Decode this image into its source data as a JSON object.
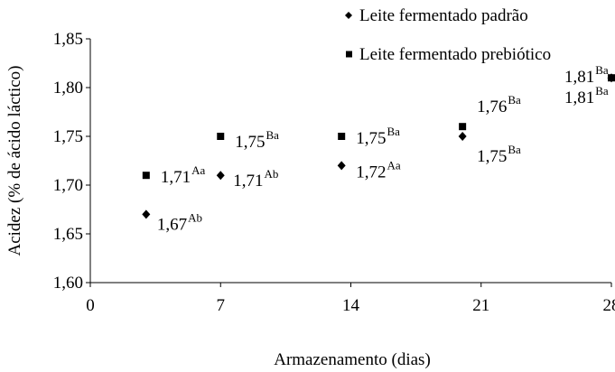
{
  "chart_data": {
    "type": "scatter",
    "x_label": "Armazenamento (dias)",
    "y_label": "Acidez (% de ácido láctico)",
    "xlim": [
      0,
      28
    ],
    "xticks": [
      0,
      7,
      14,
      21,
      28
    ],
    "ylim": [
      1.6,
      1.85
    ],
    "yticks": [
      {
        "value": 1.6,
        "label": "1,60"
      },
      {
        "value": 1.65,
        "label": "1,65"
      },
      {
        "value": 1.7,
        "label": "1,70"
      },
      {
        "value": 1.75,
        "label": "1,75"
      },
      {
        "value": 1.8,
        "label": "1,80"
      },
      {
        "value": 1.85,
        "label": "1,85"
      }
    ],
    "series": [
      {
        "name": "Leite fermentado padrão",
        "color": "#000000",
        "marker": "diamond",
        "x": [
          3,
          7,
          13.5,
          20,
          28
        ],
        "values": [
          1.67,
          1.71,
          1.72,
          1.75,
          1.81
        ],
        "value_labels": [
          "1,67",
          "1,71",
          "1,72",
          "1,75",
          "1,81"
        ],
        "superscripts": [
          "Ab",
          "Ab",
          "Aa",
          "Ba",
          "Ba"
        ]
      },
      {
        "name": "Leite fermentado prebiótico",
        "color": "#000000",
        "marker": "square",
        "x": [
          3,
          7,
          13.5,
          20,
          28
        ],
        "values": [
          1.71,
          1.75,
          1.75,
          1.76,
          1.81
        ],
        "value_labels": [
          "1,71",
          "1,75",
          "1,75",
          "1,76",
          "1,81"
        ],
        "superscripts": [
          "Aa",
          "Ba",
          "Ba",
          "Ba",
          "Ba"
        ]
      }
    ]
  }
}
